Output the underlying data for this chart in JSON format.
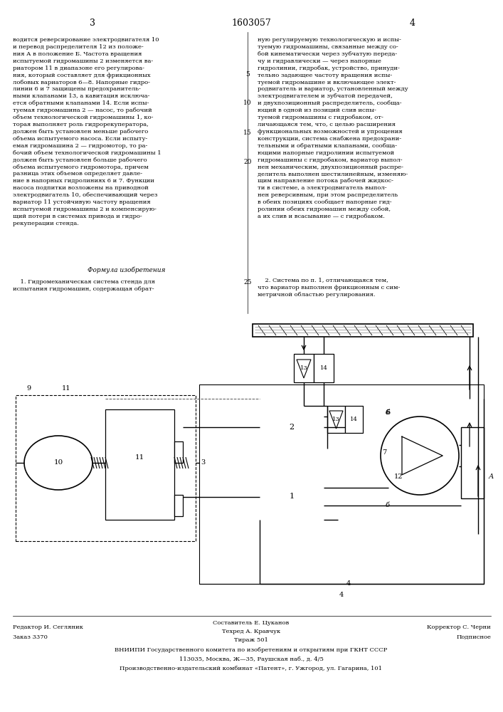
{
  "page_number_left": "3",
  "patent_number": "1603057",
  "page_number_right": "4",
  "background_color": "#ffffff",
  "text_color": "#000000",
  "text_left": "водится реверсирование электродвигателя 10\nи перевод распределителя 12 из положе-\nния А в положение Б. Частота вращения\nиспытуемой гидромашины 2 изменяется ва-\nриатором 11 в диапазоне его регулирова-\nния, который составляет для фрикционных\nлобовых вариаторов 6—8. Напорные гидро-\nлинии 6 и 7 защищены предохранитель-\nными клапанами 13, а кавитация исключа-\nется обратными клапанами 14. Если испы-\nтуемая гидромашина 2 — насос, то рабочий\nобъем технологической гидромашины 1, ко-\nторая выполняет роль гидрорекуператора,\nдолжен быть установлен меньше рабочего\nобъема испытуемого насоса. Если испыту-\nемая гидромашина 2 — гидромотор, то ра-\nбочий объем технологической гидромашины 1\nдолжен быть установлен больше рабочего\nобъема испытуемого гидромотора, причем\nразница этих объемов определяет давле-\nние в напорных гидролиниях 6 и 7. Функции\nнасоса подпитки возложены на приводной\nэлектродвигатель 10, обеспечивающий через\nвариатор 11 устойчивую частоту вращения\nиспытуемой гидромашины 2 и компенсирую-\nщий потери в системах привода и гидро-\nрекуперации стенда.",
  "line_number_5": "5",
  "line_number_10": "10",
  "line_number_15": "15",
  "line_number_20": "20",
  "line_number_25": "25",
  "formula_title": "Формула изобретения",
  "formula_text_left": "    1. Гидромеханическая система стенда для\nиспытания гидромашин, содержащая обрат-",
  "text_right": "ную регулируемую технологическую и испы-\nтуемую гидромашины, связанные между со-\nбой кинематически через зубчатую переда-\nчу и гидравлически — через напорные\nгидролинии, гидробак, устройство, принуди-\nтельно задающее частоту вращения испы-\nтуемой гидромашине и включающее элект-\nродвигатель и вариатор, установленный между\nэлектродвигателем и зубчатой передачей,\nи двухпозиционный распределитель, сообща-\nющий в одной из позиций слив испы-\nтуемой гидромашины с гидробаком, от-\nличающаяся тем, что, с целью расширения\nфункциональных возможностей и упрощения\nконструкции, система снабжена предохрани-\nтельными и обратными клапанами, сообща-\nющими напорные гидролинии испытуемой\nгидромашины с гидробаком, вариатор выпол-\nнен механическим, двухпозиционный распре-\nделитель выполнен шестилинейным, изменяю-\nщим направление потока рабочей жидкос-\nти в системе, а электродвигатель выпол-\nнен реверсивным, при этом распределитель\nв обеих позициях сообщает напорные гид-\nролинии обеих гидромашин между собой,\nа их слив и всасывание — с гидробаком.",
  "formula2_text": "    2. Система по п. 1, отличающаяся тем,\nчто вариатор выполнен фрикционным с сим-\nметричной областью регулирования.",
  "footer_left1": "Редактор И. Сегляник",
  "footer_left2": "Заказ 3370",
  "footer_center1": "Составитель Е. Цуканов",
  "footer_center2": "Техред А. Кравчук",
  "footer_center3": "Тираж 501",
  "footer_right1": "Корректор С. Черни",
  "footer_right2": "Подписное",
  "footer_vniipи": "ВНИИПИ Государственного комитета по изобретениям и открытиям при ГКНТ СССР",
  "footer_address": "113035, Москва, Ж—35, Раушская наб., д. 4/5",
  "footer_factory": "Производственно-издательский комбинат «Патент», г. Ужгород, ул. Гагарина, 101",
  "line_color": "#000000"
}
